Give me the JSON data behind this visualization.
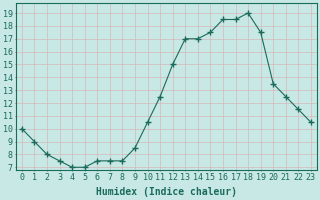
{
  "x": [
    0,
    1,
    2,
    3,
    4,
    5,
    6,
    7,
    8,
    9,
    10,
    11,
    12,
    13,
    14,
    15,
    16,
    17,
    18,
    19,
    20,
    21,
    22,
    23
  ],
  "y": [
    10,
    9,
    8,
    7.5,
    7,
    7,
    7.5,
    7.5,
    7.5,
    8.5,
    10.5,
    12.5,
    15,
    17,
    17,
    17.5,
    18.5,
    18.5,
    19,
    17.5,
    13.5,
    12.5,
    11.5,
    10.5
  ],
  "line_color": "#1a6b5a",
  "marker": "+",
  "marker_size": 4,
  "bg_color": "#c8e8e5",
  "grid_color": "#d4b8b8",
  "xlabel": "Humidex (Indice chaleur)",
  "xlabel_fontsize": 7,
  "ylabel_ticks": [
    7,
    8,
    9,
    10,
    11,
    12,
    13,
    14,
    15,
    16,
    17,
    18,
    19
  ],
  "xlim": [
    -0.5,
    23.5
  ],
  "ylim": [
    6.8,
    19.8
  ],
  "tick_fontsize": 6,
  "title_color": "#1a6b5a"
}
